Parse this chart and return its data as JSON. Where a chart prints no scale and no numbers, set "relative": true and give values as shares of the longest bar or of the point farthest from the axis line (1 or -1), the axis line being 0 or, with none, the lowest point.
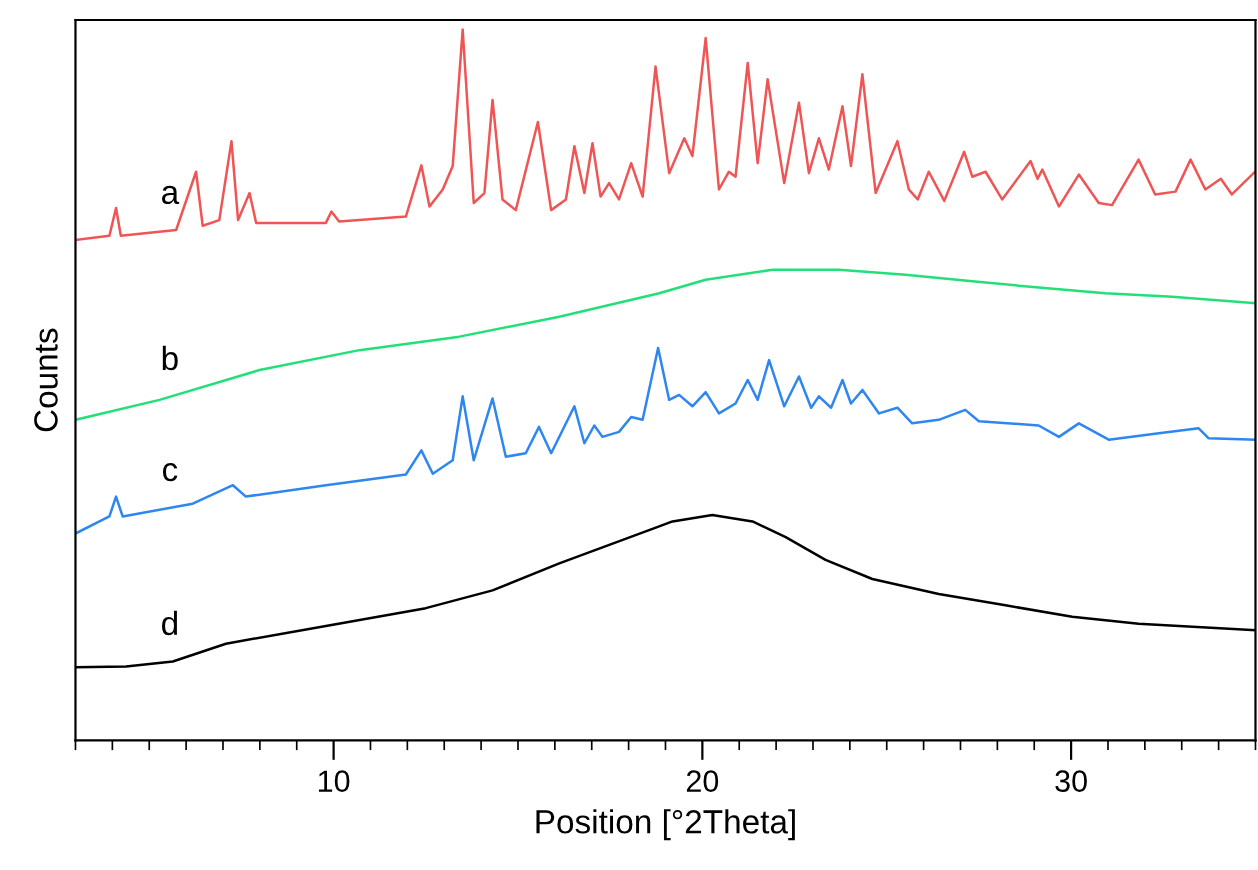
{
  "chart_data": {
    "type": "line",
    "xlabel": "Position [°2Theta]",
    "ylabel": "Counts",
    "relative": true,
    "tick_labels": "x",
    "grid": false,
    "legend": false,
    "marker": "none",
    "line_style": "solid",
    "xlim": [
      3,
      35
    ],
    "xticks": [
      {
        "value": 3,
        "label": null
      },
      {
        "value": 4,
        "label": null
      },
      {
        "value": 5,
        "label": null
      },
      {
        "value": 6,
        "label": null
      },
      {
        "value": 7,
        "label": null
      },
      {
        "value": 8,
        "label": null
      },
      {
        "value": 9,
        "label": null
      },
      10,
      {
        "value": 11,
        "label": null
      },
      {
        "value": 12,
        "label": null
      },
      {
        "value": 13,
        "label": null
      },
      {
        "value": 14,
        "label": null
      },
      {
        "value": 15,
        "label": null
      },
      {
        "value": 16,
        "label": null
      },
      {
        "value": 17,
        "label": null
      },
      {
        "value": 18,
        "label": null
      },
      {
        "value": 19,
        "label": null
      },
      20,
      {
        "value": 21,
        "label": null
      },
      {
        "value": 22,
        "label": null
      },
      {
        "value": 23,
        "label": null
      },
      {
        "value": 24,
        "label": null
      },
      {
        "value": 25,
        "label": null
      },
      {
        "value": 26,
        "label": null
      },
      {
        "value": 27,
        "label": null
      },
      {
        "value": 28,
        "label": null
      },
      {
        "value": 29,
        "label": null
      },
      30,
      {
        "value": 31,
        "label": null
      },
      {
        "value": 32,
        "label": null
      },
      {
        "value": 33,
        "label": null
      },
      {
        "value": 34,
        "label": null
      },
      {
        "value": 35,
        "label": null
      }
    ],
    "series": [
      {
        "name": "a",
        "color": "#f05555",
        "x": [
          3.0,
          3.92,
          4.1,
          4.23,
          5.73,
          6.27,
          6.45,
          6.9,
          7.23,
          7.41,
          7.72,
          7.9,
          9.79,
          9.94,
          10.15,
          11.96,
          12.38,
          12.6,
          12.96,
          13.23,
          13.5,
          13.8,
          14.09,
          14.31,
          14.58,
          14.94,
          15.54,
          15.9,
          16.3,
          16.53,
          16.8,
          17.02,
          17.24,
          17.47,
          17.74,
          18.07,
          18.38,
          18.73,
          19.1,
          19.51,
          19.73,
          20.09,
          20.45,
          20.72,
          20.9,
          21.23,
          21.5,
          21.77,
          22.22,
          22.62,
          22.89,
          23.16,
          23.43,
          23.8,
          24.03,
          24.34,
          24.7,
          25.29,
          25.6,
          25.84,
          26.14,
          26.56,
          27.1,
          27.32,
          27.68,
          28.13,
          28.9,
          29.09,
          29.22,
          29.67,
          30.21,
          30.75,
          31.11,
          31.83,
          32.28,
          32.83,
          33.24,
          33.64,
          34.06,
          34.36,
          34.99
        ],
        "values": [
          0.704,
          0.71,
          0.749,
          0.71,
          0.718,
          0.8,
          0.724,
          0.732,
          0.843,
          0.732,
          0.77,
          0.728,
          0.728,
          0.744,
          0.73,
          0.737,
          0.809,
          0.751,
          0.775,
          0.808,
          1.0,
          0.756,
          0.77,
          0.901,
          0.761,
          0.746,
          0.87,
          0.746,
          0.761,
          0.836,
          0.77,
          0.84,
          0.765,
          0.784,
          0.761,
          0.812,
          0.765,
          0.948,
          0.798,
          0.847,
          0.822,
          0.988,
          0.775,
          0.8,
          0.793,
          0.953,
          0.812,
          0.93,
          0.784,
          0.897,
          0.798,
          0.847,
          0.803,
          0.892,
          0.808,
          0.937,
          0.77,
          0.843,
          0.775,
          0.761,
          0.8,
          0.759,
          0.828,
          0.793,
          0.8,
          0.761,
          0.815,
          0.79,
          0.803,
          0.751,
          0.796,
          0.756,
          0.753,
          0.817,
          0.768,
          0.772,
          0.817,
          0.775,
          0.79,
          0.768,
          0.8
        ]
      },
      {
        "name": "b",
        "color": "#22e077",
        "x": [
          3.0,
          5.28,
          7.99,
          10.7,
          13.41,
          16.12,
          18.83,
          20.09,
          21.9,
          23.7,
          25.51,
          27.32,
          29.12,
          30.93,
          32.74,
          34.99
        ],
        "values": [
          0.451,
          0.479,
          0.521,
          0.549,
          0.568,
          0.596,
          0.629,
          0.648,
          0.662,
          0.662,
          0.655,
          0.646,
          0.637,
          0.629,
          0.624,
          0.615
        ]
      },
      {
        "name": "c",
        "color": "#2e86f0",
        "x": [
          3.0,
          3.92,
          4.1,
          4.28,
          6.18,
          7.27,
          7.62,
          9.79,
          11.96,
          12.38,
          12.69,
          13.23,
          13.5,
          13.8,
          14.31,
          14.67,
          15.21,
          15.57,
          15.9,
          16.53,
          16.8,
          17.07,
          17.29,
          17.74,
          18.07,
          18.38,
          18.8,
          19.1,
          19.37,
          19.73,
          20.09,
          20.45,
          20.9,
          21.23,
          21.5,
          21.81,
          22.22,
          22.62,
          22.95,
          23.16,
          23.49,
          23.8,
          24.03,
          24.34,
          24.79,
          25.29,
          25.69,
          26.41,
          27.13,
          27.5,
          29.12,
          29.67,
          30.21,
          31.02,
          32.38,
          33.46,
          33.73,
          34.99
        ],
        "values": [
          0.291,
          0.315,
          0.343,
          0.315,
          0.333,
          0.359,
          0.343,
          0.359,
          0.374,
          0.408,
          0.375,
          0.394,
          0.484,
          0.394,
          0.481,
          0.399,
          0.404,
          0.441,
          0.404,
          0.47,
          0.418,
          0.443,
          0.427,
          0.434,
          0.455,
          0.451,
          0.552,
          0.479,
          0.486,
          0.47,
          0.49,
          0.46,
          0.474,
          0.507,
          0.479,
          0.535,
          0.47,
          0.512,
          0.468,
          0.484,
          0.468,
          0.507,
          0.474,
          0.493,
          0.46,
          0.468,
          0.446,
          0.451,
          0.465,
          0.449,
          0.443,
          0.427,
          0.446,
          0.423,
          0.432,
          0.439,
          0.425,
          0.423
        ]
      },
      {
        "name": "d",
        "color": "#000000",
        "x": [
          3.0,
          4.37,
          5.64,
          7.08,
          9.79,
          12.5,
          14.31,
          16.12,
          18.83,
          19.19,
          20.27,
          21.36,
          22.26,
          23.34,
          24.61,
          26.41,
          28.22,
          30.03,
          31.83,
          34.99
        ],
        "values": [
          0.103,
          0.104,
          0.111,
          0.136,
          0.161,
          0.186,
          0.211,
          0.249,
          0.301,
          0.308,
          0.317,
          0.308,
          0.286,
          0.254,
          0.227,
          0.206,
          0.19,
          0.174,
          0.164,
          0.155
        ]
      }
    ]
  }
}
